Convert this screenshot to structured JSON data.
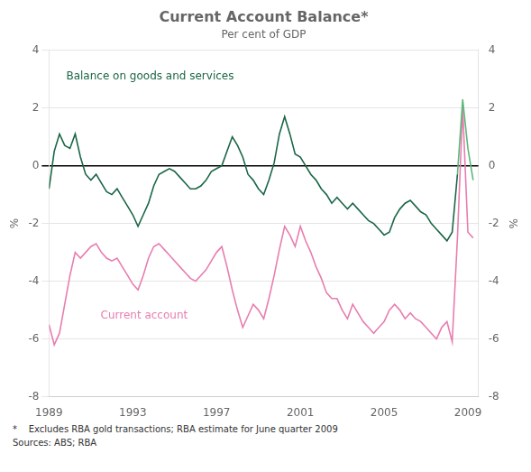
{
  "chart_data": {
    "type": "line",
    "title": "Current Account Balance*",
    "subtitle": "Per cent of GDP",
    "footnote": "*    Excludes RBA gold transactions; RBA estimate for June quarter 2009",
    "source": "Sources: ABS; RBA",
    "ylabel": "%",
    "y2label": "%",
    "grid": true,
    "legend": false,
    "xlim": [
      1989.0,
      2009.5
    ],
    "xticks": [
      1989,
      1993,
      1997,
      2001,
      2005,
      2009
    ],
    "ylim": [
      -8,
      4
    ],
    "yticks": [
      -8,
      -6,
      -4,
      -2,
      0,
      2,
      4
    ],
    "y2lim": [
      -8,
      4
    ],
    "y2ticks": [
      -8,
      -6,
      -4,
      -2,
      0,
      2,
      4
    ],
    "series": [
      {
        "name": "Balance on goods and services",
        "color": "#1a6645",
        "x": [
          1989.0,
          1989.25,
          1989.5,
          1989.75,
          1990.0,
          1990.25,
          1990.5,
          1990.75,
          1991.0,
          1991.25,
          1991.5,
          1991.75,
          1992.0,
          1992.25,
          1992.5,
          1992.75,
          1993.0,
          1993.25,
          1993.5,
          1993.75,
          1994.0,
          1994.25,
          1994.5,
          1994.75,
          1995.0,
          1995.25,
          1995.5,
          1995.75,
          1996.0,
          1996.25,
          1996.5,
          1996.75,
          1997.0,
          1997.25,
          1997.5,
          1997.75,
          1998.0,
          1998.25,
          1998.5,
          1998.75,
          1999.0,
          1999.25,
          1999.5,
          1999.75,
          2000.0,
          2000.25,
          2000.5,
          2000.75,
          2001.0,
          2001.25,
          2001.5,
          2001.75,
          2002.0,
          2002.25,
          2002.5,
          2002.75,
          2003.0,
          2003.25,
          2003.5,
          2003.75,
          2004.0,
          2004.25,
          2004.5,
          2004.75,
          2005.0,
          2005.25,
          2005.5,
          2005.75,
          2006.0,
          2006.25,
          2006.5,
          2006.75,
          2007.0,
          2007.25,
          2007.5,
          2007.75,
          2008.0,
          2008.25,
          2008.5
        ],
        "values": [
          -0.8,
          0.5,
          1.1,
          0.7,
          0.6,
          1.1,
          0.3,
          -0.3,
          -0.5,
          -0.3,
          -0.6,
          -0.9,
          -1.0,
          -0.8,
          -1.1,
          -1.4,
          -1.7,
          -2.1,
          -1.7,
          -1.3,
          -0.7,
          -0.3,
          -0.2,
          -0.1,
          -0.2,
          -0.4,
          -0.6,
          -0.8,
          -0.8,
          -0.7,
          -0.5,
          -0.2,
          -0.1,
          0.0,
          0.5,
          1.0,
          0.7,
          0.3,
          -0.3,
          -0.5,
          -0.8,
          -1.0,
          -0.5,
          0.1,
          1.1,
          1.7,
          1.1,
          0.4,
          0.3,
          -0.0,
          -0.3,
          -0.5,
          -0.8,
          -1.0,
          -1.3,
          -1.1,
          -1.3,
          -1.5,
          -1.3,
          -1.5,
          -1.7,
          -1.9,
          -2.0,
          -2.2,
          -2.4,
          -2.3,
          -1.8,
          -1.5,
          -1.3,
          -1.2,
          -1.4,
          -1.6,
          -1.7,
          -2.0,
          -2.2,
          -2.4,
          -2.6,
          -2.3,
          -0.3
        ]
      },
      {
        "color": "#5db87a",
        "x": [
          2008.5,
          2008.75,
          2009.0,
          2009.25
        ],
        "values": [
          -0.3,
          2.3,
          0.6,
          -0.5
        ]
      },
      {
        "name": "Current account",
        "color": "#e87db0",
        "x": [
          1989.0,
          1989.25,
          1989.5,
          1989.75,
          1990.0,
          1990.25,
          1990.5,
          1990.75,
          1991.0,
          1991.25,
          1991.5,
          1991.75,
          1992.0,
          1992.25,
          1992.5,
          1992.75,
          1993.0,
          1993.25,
          1993.5,
          1993.75,
          1994.0,
          1994.25,
          1994.5,
          1994.75,
          1995.0,
          1995.25,
          1995.5,
          1995.75,
          1996.0,
          1996.25,
          1996.5,
          1996.75,
          1997.0,
          1997.25,
          1997.5,
          1997.75,
          1998.0,
          1998.25,
          1998.5,
          1998.75,
          1999.0,
          1999.25,
          1999.5,
          1999.75,
          2000.0,
          2000.25,
          2000.5,
          2000.75,
          2001.0,
          2001.25,
          2001.5,
          2001.75,
          2002.0,
          2002.25,
          2002.5,
          2002.75,
          2003.0,
          2003.25,
          2003.5,
          2003.75,
          2004.0,
          2004.25,
          2004.5,
          2004.75,
          2005.0,
          2005.25,
          2005.5,
          2005.75,
          2006.0,
          2006.25,
          2006.5,
          2006.75,
          2007.0,
          2007.25,
          2007.5,
          2007.75,
          2008.0,
          2008.25,
          2008.5,
          2008.75,
          2009.0,
          2009.25
        ],
        "values": [
          -5.5,
          -6.2,
          -5.8,
          -4.8,
          -3.8,
          -3.0,
          -3.2,
          -3.0,
          -2.8,
          -2.7,
          -3.0,
          -3.2,
          -3.3,
          -3.2,
          -3.5,
          -3.8,
          -4.1,
          -4.3,
          -3.8,
          -3.2,
          -2.8,
          -2.7,
          -2.9,
          -3.1,
          -3.3,
          -3.5,
          -3.7,
          -3.9,
          -4.0,
          -3.8,
          -3.6,
          -3.3,
          -3.0,
          -2.8,
          -3.5,
          -4.3,
          -5.0,
          -5.6,
          -5.2,
          -4.8,
          -5.0,
          -5.3,
          -4.6,
          -3.8,
          -2.9,
          -2.1,
          -2.4,
          -2.8,
          -2.1,
          -2.6,
          -3.0,
          -3.5,
          -3.9,
          -4.4,
          -4.6,
          -4.6,
          -5.0,
          -5.3,
          -4.8,
          -5.1,
          -5.4,
          -5.6,
          -5.8,
          -5.6,
          -5.4,
          -5.0,
          -4.8,
          -5.0,
          -5.3,
          -5.1,
          -5.3,
          -5.4,
          -5.6,
          -5.8,
          -6.0,
          -5.6,
          -5.4,
          -6.1,
          -2.5,
          2.0,
          -2.3,
          -2.5
        ]
      }
    ]
  }
}
